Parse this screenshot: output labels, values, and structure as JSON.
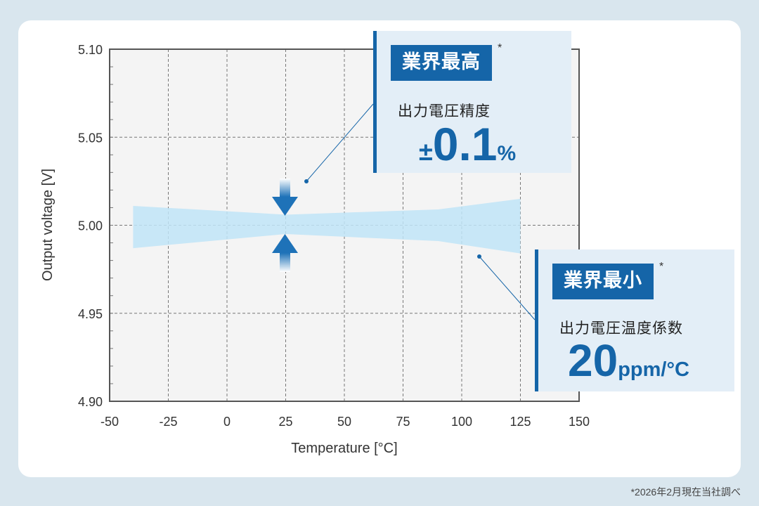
{
  "chart_data": {
    "type": "area",
    "xlabel": "Temperature [°C]",
    "ylabel": "Output voltage [V]",
    "xlim": [
      -50,
      150
    ],
    "ylim": [
      4.9,
      5.1
    ],
    "x_ticks": [
      "-50",
      "-25",
      "0",
      "25",
      "50",
      "75",
      "100",
      "125",
      "150"
    ],
    "y_ticks": [
      "5.10",
      "5.05",
      "5.00",
      "4.95",
      "4.90"
    ],
    "grid": true,
    "series": [
      {
        "x": [
          -40,
          25,
          90,
          125
        ],
        "upper": [
          5.011,
          5.006,
          5.009,
          5.015
        ],
        "lower": [
          4.987,
          4.995,
          4.991,
          4.984
        ]
      }
    ],
    "marker_x": 25,
    "colors": {
      "band": "#bfe4f7",
      "accent": "#1565a8",
      "arrow_top": "#1e72b8",
      "arrow_bottom": "#ffffff"
    }
  },
  "callout_top": {
    "badge": "業界最高",
    "asterisk": "*",
    "label": "出力電圧精度",
    "sign": "±",
    "value": "0.1",
    "unit": "%"
  },
  "callout_bottom": {
    "badge": "業界最小",
    "asterisk": "*",
    "label": "出力電圧温度係数",
    "value": "20",
    "unit": "ppm/°C"
  },
  "footnote": "*2026年2月現在当社調べ"
}
